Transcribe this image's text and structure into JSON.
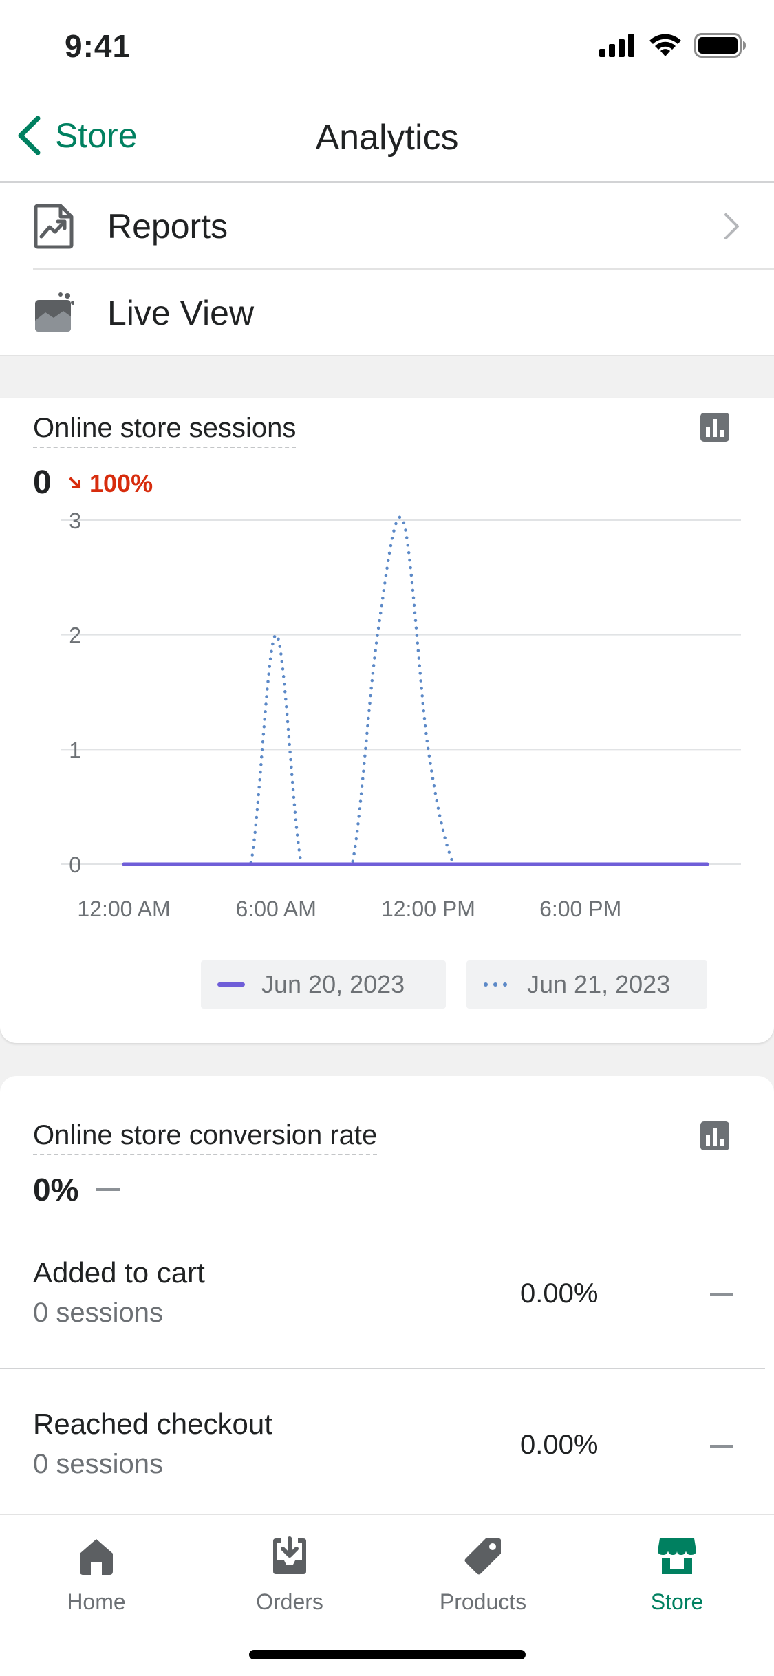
{
  "status_bar": {
    "time": "9:41"
  },
  "nav": {
    "back_label": "Store",
    "title": "Analytics"
  },
  "menu": {
    "items": [
      {
        "label": "Reports",
        "icon": "reports-icon"
      },
      {
        "label": "Live View",
        "icon": "live-view-icon"
      }
    ]
  },
  "sessions_card": {
    "title": "Online store sessions",
    "value": "0",
    "change": "100%",
    "change_direction": "down",
    "change_color": "#d72c0d"
  },
  "chart_data": {
    "type": "line",
    "title": "Online store sessions",
    "xlabel": "",
    "ylabel": "",
    "x_ticks": [
      "12:00 AM",
      "6:00 AM",
      "12:00 PM",
      "6:00 PM"
    ],
    "y_ticks": [
      0,
      1,
      2,
      3
    ],
    "ylim": [
      0,
      3
    ],
    "xlim": [
      0,
      23
    ],
    "grid": true,
    "legend_position": "bottom-right",
    "series": [
      {
        "name": "Jun 20, 2023",
        "style": "solid",
        "color": "#6f5ed8",
        "x": [
          0,
          1,
          2,
          3,
          4,
          5,
          6,
          7,
          8,
          9,
          10,
          11,
          12,
          13,
          14,
          15,
          16,
          17,
          18,
          19,
          20,
          21,
          22,
          23
        ],
        "y": [
          0,
          0,
          0,
          0,
          0,
          0,
          0,
          0,
          0,
          0,
          0,
          0,
          0,
          0,
          0,
          0,
          0,
          0,
          0,
          0,
          0,
          0,
          0,
          0
        ]
      },
      {
        "name": "Jun 21, 2023",
        "style": "dotted",
        "color": "#5c89c7",
        "x": [
          0,
          1,
          2,
          3,
          4,
          5,
          6,
          7,
          8,
          9,
          10,
          11,
          12,
          13,
          14,
          15,
          16,
          17,
          18,
          19,
          20,
          21,
          22,
          23
        ],
        "y": [
          0,
          0,
          0,
          0,
          0,
          0,
          2,
          0,
          0,
          0,
          2,
          3,
          1,
          0,
          0,
          0,
          0,
          0,
          0,
          0,
          0,
          0,
          0,
          0
        ]
      }
    ]
  },
  "conversion_card": {
    "title": "Online store conversion rate",
    "value": "0%",
    "rows": [
      {
        "title": "Added to cart",
        "sub": "0 sessions",
        "pct": "0.00%"
      },
      {
        "title": "Reached checkout",
        "sub": "0 sessions",
        "pct": "0.00%"
      }
    ]
  },
  "tabs": [
    {
      "label": "Home",
      "icon": "home-icon",
      "active": false
    },
    {
      "label": "Orders",
      "icon": "orders-icon",
      "active": false
    },
    {
      "label": "Products",
      "icon": "products-icon",
      "active": false
    },
    {
      "label": "Store",
      "icon": "store-icon",
      "active": true
    }
  ],
  "colors": {
    "accent": "#008060",
    "negative": "#d72c0d",
    "icon_gray": "#5c5f62"
  }
}
